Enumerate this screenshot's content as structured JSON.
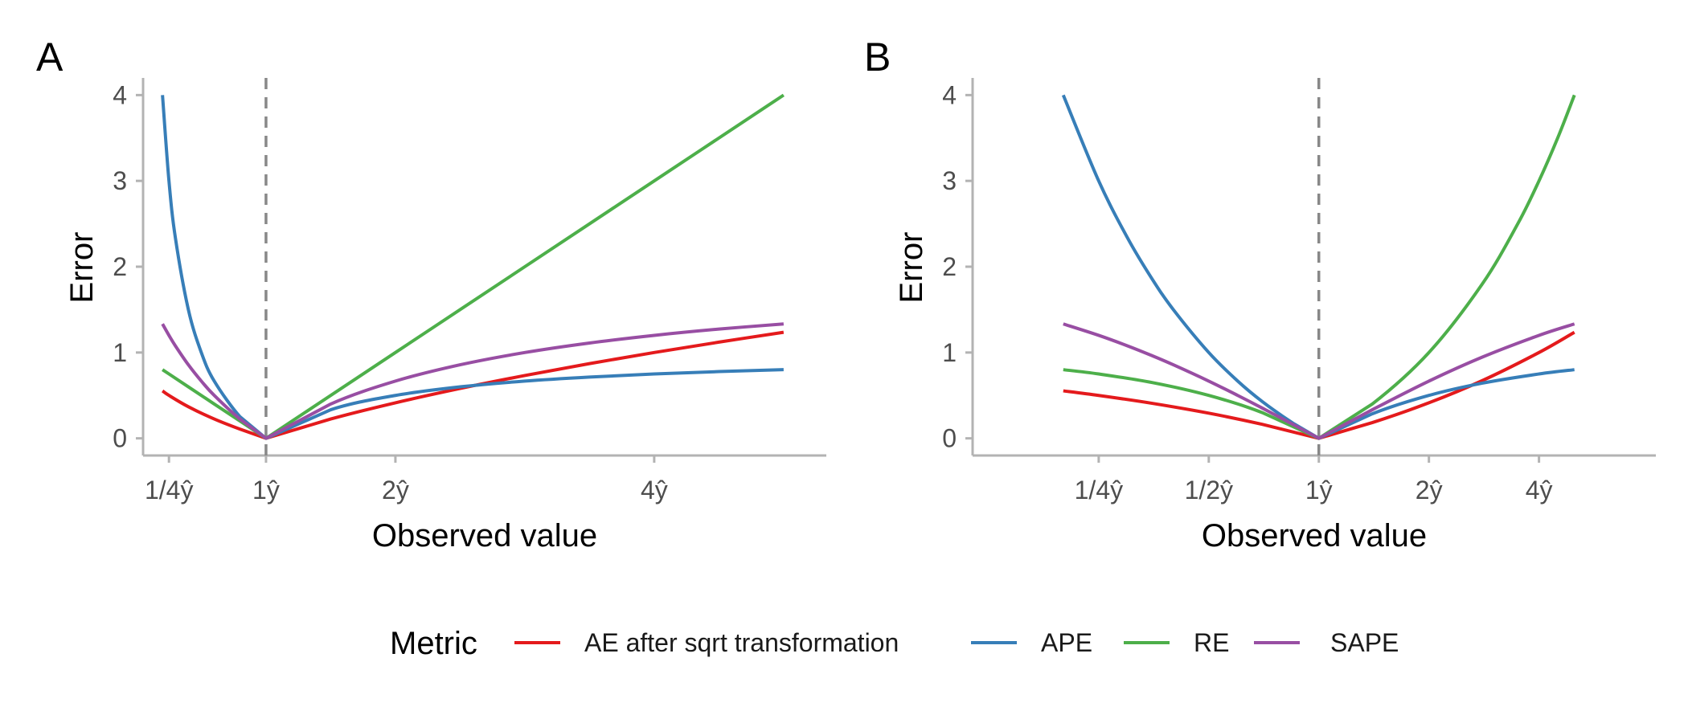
{
  "chart_data": [
    {
      "panel_label": "A",
      "type": "line",
      "x_scale": "linear",
      "xlabel": "Observed value",
      "ylabel": "Error",
      "xlim": [
        0.05,
        5.33
      ],
      "ylim": [
        -0.2,
        4.2
      ],
      "x_ticks": [
        0.25,
        1,
        2,
        4
      ],
      "x_tick_labels": [
        "1/4ŷ",
        "1ŷ",
        "2ŷ",
        "4ŷ"
      ],
      "y_ticks": [
        0,
        1,
        2,
        3,
        4
      ],
      "y_tick_labels": [
        "0",
        "1",
        "2",
        "3",
        "4"
      ],
      "reference_line": {
        "x": 1,
        "style": "dashed"
      },
      "series": [
        {
          "name": "AE after sqrt transformation",
          "color": "#E41A1C",
          "points": [
            [
              0.2,
              0.553
            ],
            [
              0.25,
              0.5
            ],
            [
              0.4,
              0.368
            ],
            [
              0.6,
              0.225
            ],
            [
              0.8,
              0.106
            ],
            [
              1,
              0
            ],
            [
              1.5,
              0.225
            ],
            [
              2,
              0.414
            ],
            [
              2.5,
              0.581
            ],
            [
              3,
              0.732
            ],
            [
              3.5,
              0.871
            ],
            [
              4,
              1.0
            ],
            [
              4.5,
              1.121
            ],
            [
              5,
              1.236
            ]
          ]
        },
        {
          "name": "APE",
          "color": "#377EB8",
          "points": [
            [
              0.2,
              4.0
            ],
            [
              0.25,
              3.0
            ],
            [
              0.3,
              2.333
            ],
            [
              0.4,
              1.5
            ],
            [
              0.5,
              1.0
            ],
            [
              0.6,
              0.667
            ],
            [
              0.8,
              0.25
            ],
            [
              1,
              0
            ],
            [
              1.5,
              0.333
            ],
            [
              2,
              0.5
            ],
            [
              2.5,
              0.6
            ],
            [
              3,
              0.667
            ],
            [
              3.5,
              0.714
            ],
            [
              4,
              0.75
            ],
            [
              4.5,
              0.778
            ],
            [
              5,
              0.8
            ]
          ]
        },
        {
          "name": "RE",
          "color": "#4DAF4A",
          "points": [
            [
              0.2,
              0.8
            ],
            [
              0.25,
              0.75
            ],
            [
              0.4,
              0.6
            ],
            [
              0.6,
              0.4
            ],
            [
              0.8,
              0.2
            ],
            [
              1,
              0
            ],
            [
              2,
              1
            ],
            [
              3,
              2
            ],
            [
              4,
              3
            ],
            [
              5,
              4
            ]
          ]
        },
        {
          "name": "SAPE",
          "color": "#984EA3",
          "points": [
            [
              0.2,
              1.333
            ],
            [
              0.25,
              1.2
            ],
            [
              0.3,
              1.077
            ],
            [
              0.4,
              0.857
            ],
            [
              0.5,
              0.667
            ],
            [
              0.6,
              0.5
            ],
            [
              0.8,
              0.222
            ],
            [
              1,
              0
            ],
            [
              1.5,
              0.4
            ],
            [
              2,
              0.667
            ],
            [
              2.5,
              0.857
            ],
            [
              3,
              1.0
            ],
            [
              3.5,
              1.111
            ],
            [
              4,
              1.2
            ],
            [
              4.5,
              1.273
            ],
            [
              5,
              1.333
            ]
          ]
        }
      ]
    },
    {
      "panel_label": "B",
      "type": "line",
      "x_scale": "log2",
      "xlabel": "Observed value",
      "ylabel": "Error",
      "xlim": [
        0.113,
        8.35
      ],
      "ylim": [
        -0.2,
        4.2
      ],
      "x_ticks": [
        0.25,
        0.5,
        1,
        2,
        4
      ],
      "x_tick_labels": [
        "1/4ŷ",
        "1/2ŷ",
        "1ŷ",
        "2ŷ",
        "4ŷ"
      ],
      "y_ticks": [
        0,
        1,
        2,
        3,
        4
      ],
      "y_tick_labels": [
        "0",
        "1",
        "2",
        "3",
        "4"
      ],
      "reference_line": {
        "x": 1,
        "style": "dashed"
      },
      "series": [
        {
          "name": "AE after sqrt transformation",
          "color": "#E41A1C",
          "points": [
            [
              0.2,
              0.553
            ],
            [
              0.25,
              0.5
            ],
            [
              0.35,
              0.408
            ],
            [
              0.5,
              0.293
            ],
            [
              0.7,
              0.163
            ],
            [
              1,
              0
            ],
            [
              1.4,
              0.183
            ],
            [
              2,
              0.414
            ],
            [
              2.8,
              0.673
            ],
            [
              4,
              1.0
            ],
            [
              5,
              1.236
            ]
          ]
        },
        {
          "name": "APE",
          "color": "#377EB8",
          "points": [
            [
              0.2,
              4.0
            ],
            [
              0.25,
              3.0
            ],
            [
              0.3,
              2.333
            ],
            [
              0.35,
              1.857
            ],
            [
              0.4,
              1.5
            ],
            [
              0.5,
              1.0
            ],
            [
              0.6,
              0.667
            ],
            [
              0.7,
              0.429
            ],
            [
              0.85,
              0.176
            ],
            [
              1,
              0
            ],
            [
              1.4,
              0.286
            ],
            [
              2,
              0.5
            ],
            [
              2.8,
              0.643
            ],
            [
              4,
              0.75
            ],
            [
              5,
              0.8
            ]
          ]
        },
        {
          "name": "RE",
          "color": "#4DAF4A",
          "points": [
            [
              0.2,
              0.8
            ],
            [
              0.25,
              0.75
            ],
            [
              0.35,
              0.65
            ],
            [
              0.5,
              0.5
            ],
            [
              0.7,
              0.3
            ],
            [
              1,
              0
            ],
            [
              1.4,
              0.4
            ],
            [
              2,
              1
            ],
            [
              2.8,
              1.8
            ],
            [
              3.5,
              2.5
            ],
            [
              4,
              3
            ],
            [
              4.5,
              3.5
            ],
            [
              5,
              4
            ]
          ]
        },
        {
          "name": "SAPE",
          "color": "#984EA3",
          "points": [
            [
              0.2,
              1.333
            ],
            [
              0.25,
              1.2
            ],
            [
              0.3,
              1.077
            ],
            [
              0.35,
              0.963
            ],
            [
              0.4,
              0.857
            ],
            [
              0.5,
              0.667
            ],
            [
              0.6,
              0.5
            ],
            [
              0.7,
              0.353
            ],
            [
              0.85,
              0.162
            ],
            [
              1,
              0
            ],
            [
              1.4,
              0.333
            ],
            [
              2,
              0.667
            ],
            [
              2.8,
              0.947
            ],
            [
              4,
              1.2
            ],
            [
              5,
              1.333
            ]
          ]
        }
      ]
    }
  ],
  "legend": {
    "title": "Metric",
    "position": "bottom",
    "items": [
      {
        "label": "AE after sqrt transformation",
        "color": "#E41A1C"
      },
      {
        "label": "APE",
        "color": "#377EB8"
      },
      {
        "label": "RE",
        "color": "#4DAF4A"
      },
      {
        "label": "SAPE",
        "color": "#984EA3"
      }
    ]
  }
}
